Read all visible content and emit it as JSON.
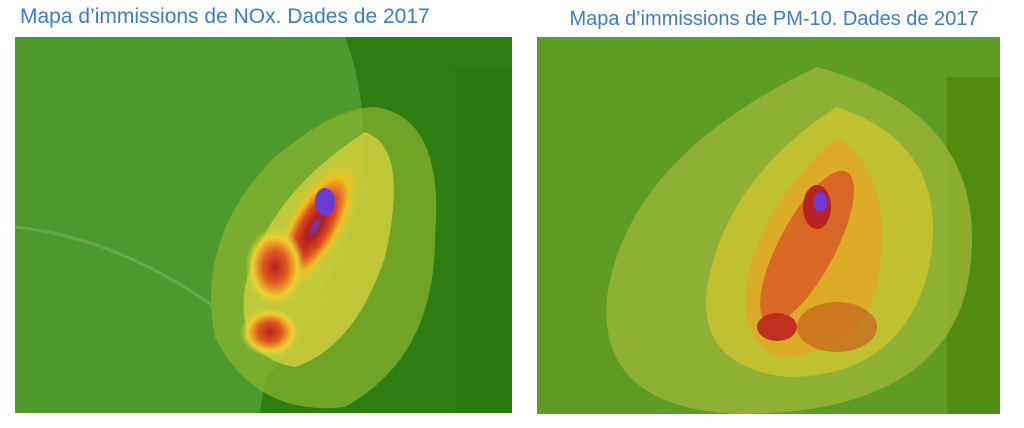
{
  "panels": [
    {
      "title": "Mapa d’immissions de NOx. Dades de 2017"
    },
    {
      "title": "Mapa d’immissions de PM-10. Dades de 2017"
    }
  ]
}
